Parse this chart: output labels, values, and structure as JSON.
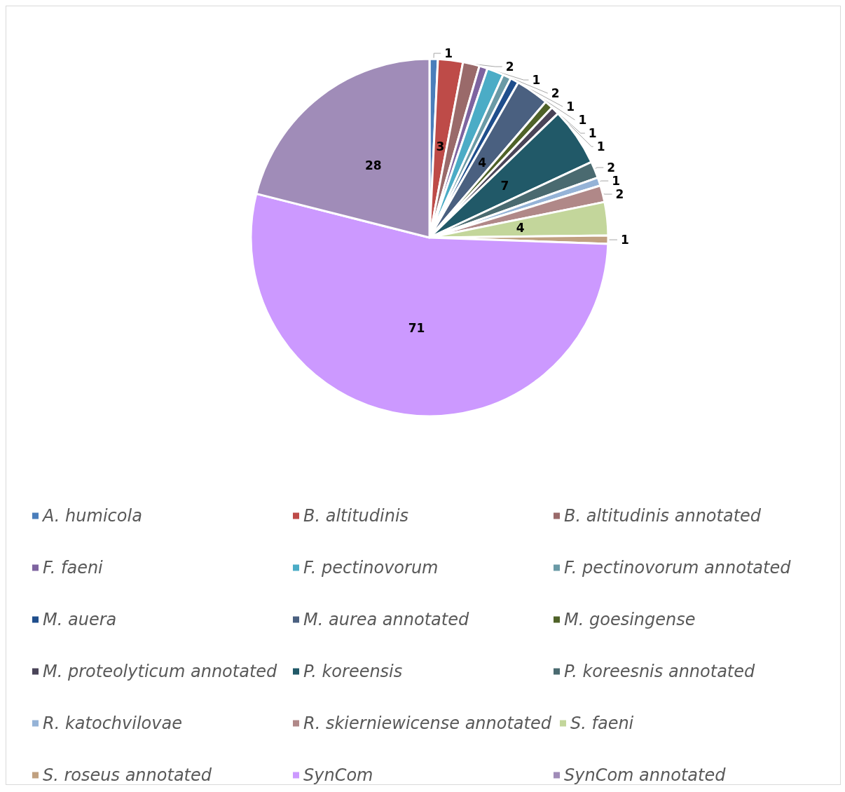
{
  "chart_data": {
    "type": "pie",
    "categories": [
      "A. humicola",
      "B. altitudinis",
      "B. altitudinis annotated",
      "F. faeni",
      "F. pectinovorum",
      "F. pectinovorum annotated",
      "M. auera",
      "M. aurea annotated",
      "M. goesingense",
      "M. proteolyticum annotated",
      "P. koreensis",
      "P. koreesnis annotated",
      "R. katochvilovae",
      "R. skierniewicense annotated",
      "S. faeni",
      "S. roseus annotated",
      "SynCom",
      "SynCom annotated"
    ],
    "values": [
      1,
      3,
      2,
      1,
      2,
      1,
      1,
      4,
      1,
      1,
      7,
      2,
      1,
      2,
      4,
      1,
      71,
      28
    ],
    "colors": [
      "#4a7ebb",
      "#be4b48",
      "#9a6a6a",
      "#7e64a0",
      "#4bacc6",
      "#6a9aa6",
      "#1f4e8c",
      "#4a6080",
      "#4f6228",
      "#4a4458",
      "#215968",
      "#4a6a70",
      "#95b3d7",
      "#b08888",
      "#c3d69b",
      "#c0a080",
      "#cc99ff",
      "#a08cb8"
    ],
    "data_labels": true,
    "legend": "bottom"
  }
}
